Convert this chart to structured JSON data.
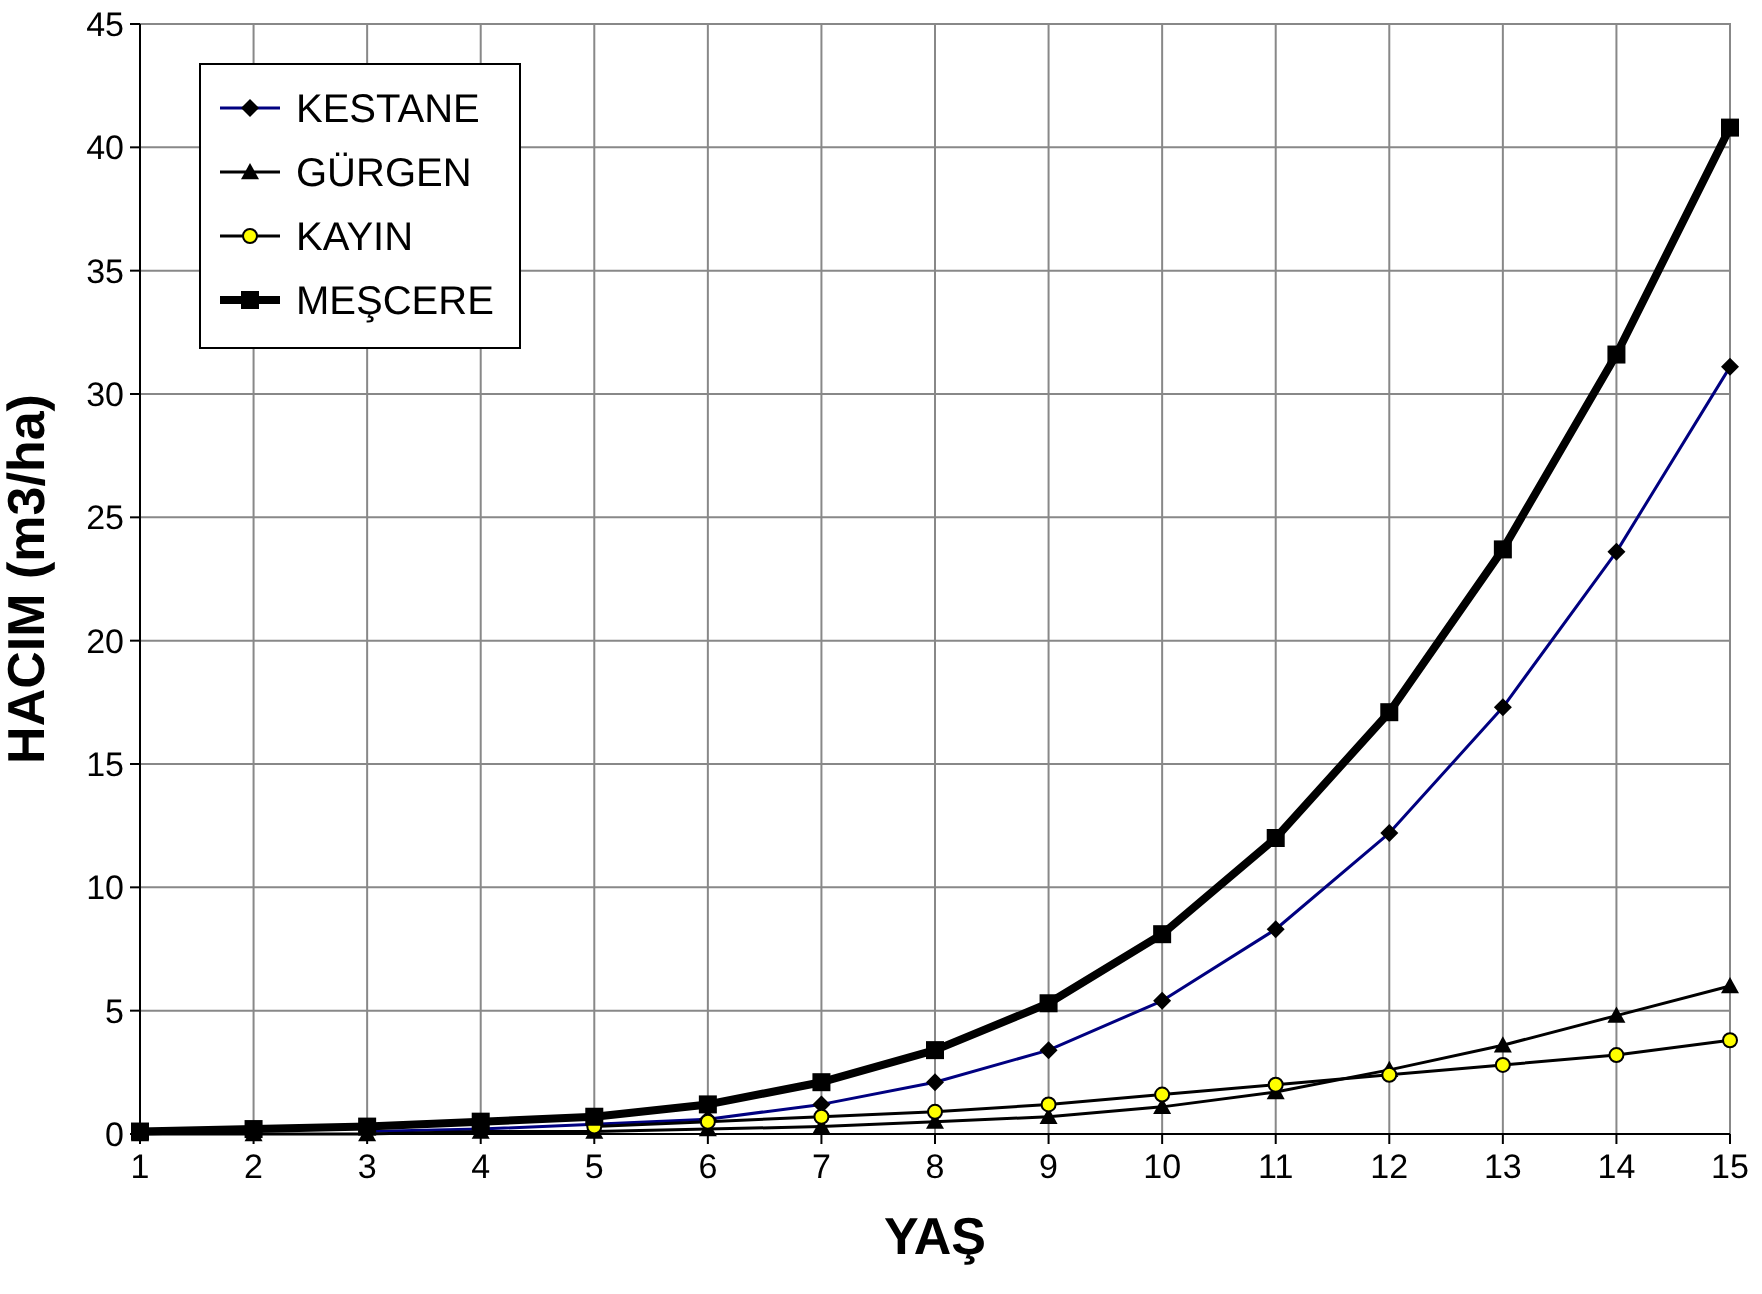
{
  "chart_data": {
    "type": "line",
    "xlabel": "YAŞ",
    "ylabel": "HACIM (m3/ha)",
    "x": [
      1,
      2,
      3,
      4,
      5,
      6,
      7,
      8,
      9,
      10,
      11,
      12,
      13,
      14,
      15
    ],
    "xlim": [
      1,
      15
    ],
    "xticks": [
      1,
      2,
      3,
      4,
      5,
      6,
      7,
      8,
      9,
      10,
      11,
      12,
      13,
      14,
      15
    ],
    "ylim": [
      0,
      45
    ],
    "yticks": [
      0,
      5,
      10,
      15,
      20,
      25,
      30,
      35,
      40,
      45
    ],
    "grid": true,
    "legend": "top left",
    "series": [
      {
        "name": "KESTANE",
        "color": "#000080",
        "marker": "diamond",
        "values": [
          null,
          null,
          0.1,
          0.2,
          0.4,
          0.6,
          1.2,
          2.1,
          3.4,
          5.4,
          8.3,
          12.2,
          17.3,
          23.6,
          31.1
        ]
      },
      {
        "name": "GÜRGEN",
        "color": "#000000",
        "marker": "triangle",
        "values": [
          0,
          0,
          0,
          0.1,
          0.1,
          0.2,
          0.3,
          0.5,
          0.7,
          1.1,
          1.7,
          2.6,
          3.6,
          4.8,
          6.0
        ]
      },
      {
        "name": "KAYIN",
        "color": "#000000",
        "marker": "circle",
        "values": [
          null,
          null,
          null,
          null,
          0.3,
          0.5,
          0.7,
          0.9,
          1.2,
          1.6,
          2.0,
          2.4,
          2.8,
          3.2,
          3.8
        ]
      },
      {
        "name": "MEŞCERE",
        "color": "#000000",
        "marker": "square",
        "values": [
          0.1,
          0.2,
          0.3,
          0.5,
          0.7,
          1.2,
          2.1,
          3.4,
          5.3,
          8.1,
          12.0,
          17.1,
          23.7,
          31.6,
          40.8
        ]
      }
    ]
  }
}
